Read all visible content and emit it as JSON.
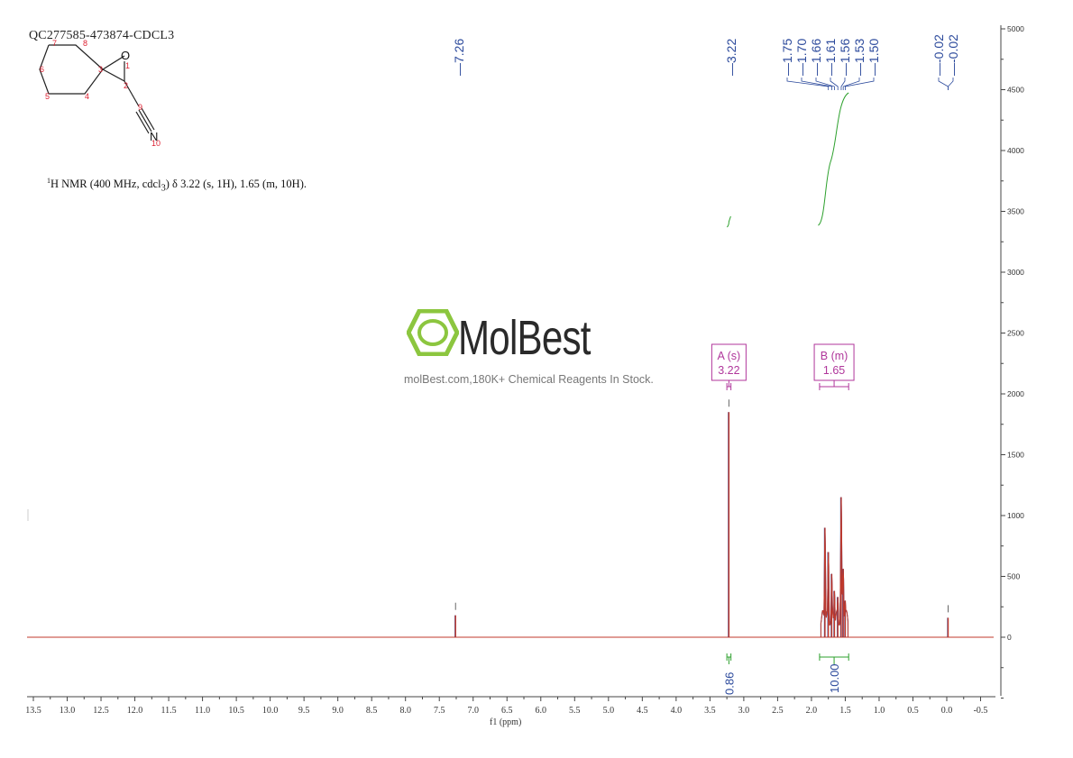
{
  "header": {
    "sample_id": "QC277585-473874-CDCL3",
    "nmr_description_prefix": "H NMR (400 MHz, cdcl",
    "nmr_description_sup": "1",
    "nmr_description_sub": "3",
    "nmr_description_suffix": ") δ 3.22 (s, 1H), 1.65 (m, 10H)."
  },
  "watermark": {
    "brand": "MolBest",
    "tagline": "molBest.com,180K+ Chemical Reagents In Stock.",
    "logo_color": "#8cc63f"
  },
  "molecule": {
    "atoms": [
      {
        "label": "O",
        "number": "1"
      },
      {
        "label": "",
        "number": "2"
      },
      {
        "label": "",
        "number": "3"
      },
      {
        "label": "",
        "number": "4"
      },
      {
        "label": "",
        "number": "5"
      },
      {
        "label": "",
        "number": "6"
      },
      {
        "label": "",
        "number": "7"
      },
      {
        "label": "",
        "number": "8"
      },
      {
        "label": "",
        "number": "9"
      },
      {
        "label": "N",
        "number": "10"
      }
    ]
  },
  "chart_data": {
    "type": "line",
    "xlabel": "f1 (ppm)",
    "xlim": [
      13.5,
      -0.5
    ],
    "x_reversed": true,
    "ylim": [
      -1000,
      5000
    ],
    "x_ticks": [
      "13.5",
      "13.0",
      "12.5",
      "12.0",
      "11.5",
      "11.0",
      "10.5",
      "10.0",
      "9.5",
      "9.0",
      "8.5",
      "8.0",
      "7.5",
      "7.0",
      "6.5",
      "6.0",
      "5.5",
      "5.0",
      "4.5",
      "4.0",
      "3.5",
      "3.0",
      "2.5",
      "2.0",
      "1.5",
      "1.0",
      "0.5",
      "0.0",
      "-0.5"
    ],
    "y_ticks": [
      "0",
      "500",
      "1000",
      "1500",
      "2000",
      "2500",
      "3000",
      "3500",
      "4000",
      "4500",
      "5000"
    ],
    "peak_labels": [
      "7.26",
      "3.22",
      "1.75",
      "1.70",
      "1.66",
      "1.61",
      "1.56",
      "1.53",
      "1.50",
      "-0.02",
      "-0.02"
    ],
    "peaks": [
      {
        "ppm": 7.26,
        "height": 180
      },
      {
        "ppm": 3.22,
        "height": 1850
      },
      {
        "ppm": 1.8,
        "height": 900
      },
      {
        "ppm": 1.75,
        "height": 700
      },
      {
        "ppm": 1.7,
        "height": 520
      },
      {
        "ppm": 1.66,
        "height": 380
      },
      {
        "ppm": 1.61,
        "height": 330
      },
      {
        "ppm": 1.56,
        "height": 1150
      },
      {
        "ppm": 1.53,
        "height": 560
      },
      {
        "ppm": 1.5,
        "height": 300
      },
      {
        "ppm": -0.02,
        "height": 160
      }
    ],
    "multiplets": [
      {
        "label": "A (s)",
        "shift": "3.22",
        "from": 3.25,
        "to": 3.19
      },
      {
        "label": "B (m)",
        "shift": "1.65",
        "from": 1.88,
        "to": 1.45
      }
    ],
    "integrals": [
      {
        "value": "0.86",
        "from": 3.25,
        "to": 3.19
      },
      {
        "value": "10.00",
        "from": 1.88,
        "to": 1.45
      }
    ],
    "colors": {
      "spectrum": "#c0392b",
      "spectrum_shadow": "#2c3e91",
      "integral": "#2ca02c",
      "multiplet": "#b0369b",
      "peak_label": "#2c4a9c",
      "axis": "#444444"
    }
  }
}
